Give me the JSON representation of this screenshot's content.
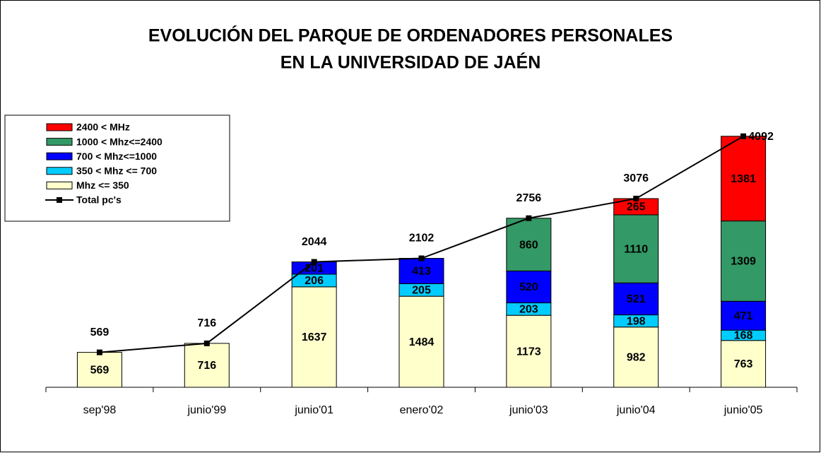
{
  "chart_data": {
    "type": "bar",
    "stacked": true,
    "title": [
      "EVOLUCIÓN DEL PARQUE DE ORDENADORES PERSONALES",
      "EN LA UNIVERSIDAD DE JAÉN"
    ],
    "categories": [
      "sep'98",
      "junio'99",
      "junio'01",
      "enero'02",
      "junio'03",
      "junio'04",
      "junio'05"
    ],
    "series": [
      {
        "name": "Mhz <= 350",
        "color": "#ffffcc",
        "values": [
          569,
          716,
          1637,
          1484,
          1173,
          982,
          763
        ]
      },
      {
        "name": "350 < Mhz <= 700",
        "color": "#00ccff",
        "values": [
          null,
          null,
          206,
          205,
          203,
          198,
          168
        ]
      },
      {
        "name": "700 < Mhz<=1000",
        "color": "#0000ff",
        "values": [
          null,
          null,
          201,
          413,
          520,
          521,
          471
        ]
      },
      {
        "name": "1000 < Mhz<=2400",
        "color": "#339966",
        "values": [
          null,
          null,
          null,
          null,
          860,
          1110,
          1309
        ]
      },
      {
        "name": "2400 < MHz",
        "color": "#ff0000",
        "values": [
          null,
          null,
          null,
          null,
          null,
          265,
          1381
        ]
      },
      {
        "name": "Total pc's",
        "type": "line",
        "color": "#000000",
        "values": [
          569,
          716,
          2044,
          2102,
          2756,
          3076,
          4092
        ]
      }
    ],
    "ylim": [
      0,
      4700
    ],
    "legend": "left"
  }
}
